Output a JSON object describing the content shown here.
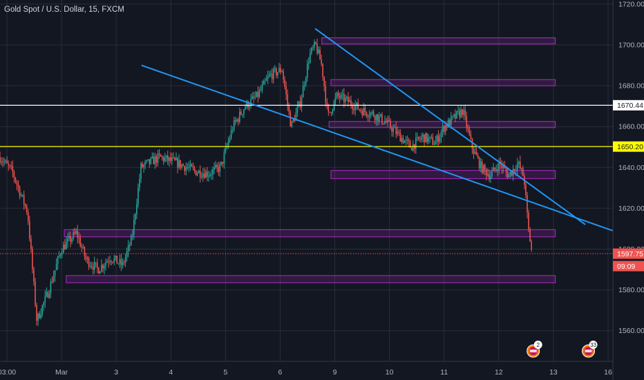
{
  "symbol_title": "Gold Spot / U.S. Dollar, 15, FXCM",
  "chart_data": {
    "type": "candlestick",
    "title": "Gold Spot / U.S. Dollar, 15, FXCM",
    "ylim": [
      1545,
      1722
    ],
    "y_ticks": [
      1560,
      1580,
      1600,
      1620,
      1640,
      1660,
      1680,
      1700,
      1720
    ],
    "x_ticks": [
      "03:00",
      "Mar",
      "3",
      "4",
      "5",
      "6",
      "9",
      "10",
      "11",
      "12",
      "13",
      "16"
    ],
    "grid": true,
    "price_path": [
      [
        0,
        1645
      ],
      [
        0.02,
        1638
      ],
      [
        0.045,
        1618
      ],
      [
        0.06,
        1565
      ],
      [
        0.08,
        1580
      ],
      [
        0.1,
        1600
      ],
      [
        0.125,
        1608
      ],
      [
        0.14,
        1595
      ],
      [
        0.16,
        1590
      ],
      [
        0.18,
        1596
      ],
      [
        0.2,
        1592
      ],
      [
        0.215,
        1605
      ],
      [
        0.23,
        1640
      ],
      [
        0.26,
        1645
      ],
      [
        0.29,
        1642
      ],
      [
        0.32,
        1638
      ],
      [
        0.34,
        1637
      ],
      [
        0.36,
        1640
      ],
      [
        0.38,
        1660
      ],
      [
        0.4,
        1670
      ],
      [
        0.42,
        1675
      ],
      [
        0.44,
        1685
      ],
      [
        0.46,
        1688
      ],
      [
        0.475,
        1660
      ],
      [
        0.49,
        1672
      ],
      [
        0.505,
        1695
      ],
      [
        0.515,
        1700
      ],
      [
        0.525,
        1690
      ],
      [
        0.535,
        1665
      ],
      [
        0.55,
        1675
      ],
      [
        0.57,
        1672
      ],
      [
        0.59,
        1668
      ],
      [
        0.61,
        1666
      ],
      [
        0.63,
        1662
      ],
      [
        0.65,
        1656
      ],
      [
        0.67,
        1650
      ],
      [
        0.69,
        1655
      ],
      [
        0.71,
        1652
      ],
      [
        0.725,
        1660
      ],
      [
        0.74,
        1664
      ],
      [
        0.755,
        1668
      ],
      [
        0.77,
        1650
      ],
      [
        0.785,
        1640
      ],
      [
        0.8,
        1636
      ],
      [
        0.815,
        1642
      ],
      [
        0.83,
        1636
      ],
      [
        0.845,
        1642
      ],
      [
        0.855,
        1635
      ],
      [
        0.862,
        1610
      ],
      [
        0.868,
        1598
      ]
    ],
    "horizontal_lines": [
      {
        "price": 1670.44,
        "label": "1670.44",
        "color": "#ffffff"
      },
      {
        "price": 1650.2,
        "label": "1650.20",
        "color": "#ffff00"
      }
    ],
    "current_price": {
      "price": 1597.75,
      "label": "1597.75",
      "countdown": "09:09",
      "color": "#ef5350"
    },
    "zones": [
      {
        "x0": 0.525,
        "x1": 0.906,
        "low": 1700.5,
        "high": 1703.5
      },
      {
        "x0": 0.54,
        "x1": 0.906,
        "low": 1680,
        "high": 1683
      },
      {
        "x0": 0.537,
        "x1": 0.906,
        "low": 1659.5,
        "high": 1662.5
      },
      {
        "x0": 0.54,
        "x1": 0.906,
        "low": 1634.5,
        "high": 1638.5
      },
      {
        "x0": 0.105,
        "x1": 0.906,
        "low": 1606,
        "high": 1609.5
      },
      {
        "x0": 0.108,
        "x1": 0.906,
        "low": 1583.5,
        "high": 1587
      }
    ],
    "trendlines": [
      {
        "p1": [
          0.231,
          1690
        ],
        "p2": [
          1.0,
          1609
        ]
      },
      {
        "p1": [
          0.514,
          1708
        ],
        "p2": [
          0.955,
          1612
        ]
      }
    ],
    "event_badges": [
      {
        "position": 0.87,
        "count": "2"
      },
      {
        "position": 0.96,
        "count": "33"
      }
    ]
  }
}
